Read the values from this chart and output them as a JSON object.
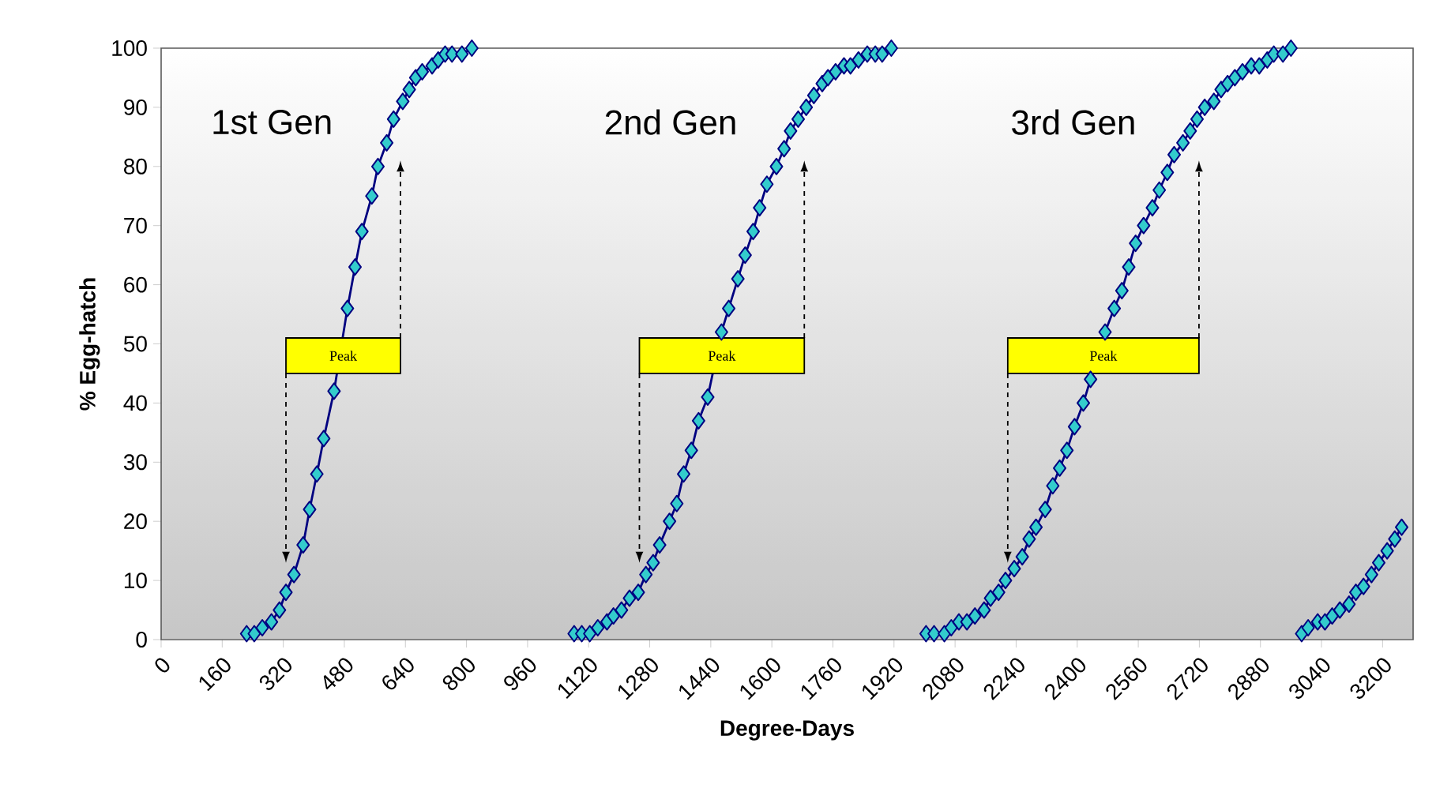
{
  "chart_data": {
    "type": "line",
    "xlabel": "Degree-Days",
    "ylabel": "% Egg-hatch",
    "xlim": [
      0,
      3280
    ],
    "ylim": [
      0,
      100
    ],
    "xticks": [
      0,
      160,
      320,
      480,
      640,
      800,
      960,
      1120,
      1280,
      1440,
      1600,
      1760,
      1920,
      2080,
      2240,
      2400,
      2560,
      2720,
      2880,
      3040,
      3200
    ],
    "yticks": [
      0,
      10,
      20,
      30,
      40,
      50,
      60,
      70,
      80,
      90,
      100
    ],
    "marker": "diamond",
    "line_style": "solid",
    "series": [
      {
        "color": "#33cccc",
        "x": [
          224,
          244,
          265,
          289,
          310,
          327,
          348,
          372,
          389,
          408,
          426,
          453,
          488,
          508,
          526,
          552,
          568,
          591,
          609,
          633,
          650,
          667,
          684,
          710,
          726,
          744,
          762,
          788,
          814
        ],
        "values": [
          1,
          1,
          2,
          3,
          5,
          8,
          11,
          16,
          22,
          28,
          34,
          42,
          56,
          63,
          69,
          75,
          80,
          84,
          88,
          91,
          93,
          95,
          96,
          97,
          98,
          99,
          99,
          99,
          100
        ]
      },
      {
        "color": "#33cccc",
        "x": [
          1082,
          1102,
          1123,
          1144,
          1168,
          1185,
          1206,
          1227,
          1250,
          1270,
          1289,
          1306,
          1332,
          1351,
          1369,
          1389,
          1408,
          1432,
          1468,
          1487,
          1511,
          1530,
          1551,
          1568,
          1587,
          1612,
          1632,
          1649,
          1669,
          1690,
          1710,
          1732,
          1747,
          1767,
          1789,
          1806,
          1827,
          1850,
          1871,
          1889,
          1913
        ],
        "values": [
          1,
          1,
          1,
          2,
          3,
          4,
          5,
          7,
          8,
          11,
          13,
          16,
          20,
          23,
          28,
          32,
          37,
          41,
          52,
          56,
          61,
          65,
          69,
          73,
          77,
          80,
          83,
          86,
          88,
          90,
          92,
          94,
          95,
          96,
          97,
          97,
          98,
          99,
          99,
          99,
          100
        ]
      },
      {
        "color": "#33cccc",
        "x": [
          2004,
          2025,
          2052,
          2070,
          2090,
          2111,
          2132,
          2156,
          2173,
          2194,
          2212,
          2235,
          2256,
          2274,
          2292,
          2316,
          2336,
          2354,
          2373,
          2393,
          2416,
          2435,
          2473,
          2497,
          2517,
          2535,
          2553,
          2574,
          2597,
          2615,
          2636,
          2654,
          2677,
          2696,
          2714,
          2734,
          2758,
          2777,
          2794,
          2813,
          2833,
          2856,
          2877,
          2898,
          2915,
          2939,
          2960
        ],
        "values": [
          1,
          1,
          1,
          2,
          3,
          3,
          4,
          5,
          7,
          8,
          10,
          12,
          14,
          17,
          19,
          22,
          26,
          29,
          32,
          36,
          40,
          44,
          52,
          56,
          59,
          63,
          67,
          70,
          73,
          76,
          79,
          82,
          84,
          86,
          88,
          90,
          91,
          93,
          94,
          95,
          96,
          97,
          97,
          98,
          99,
          99,
          100
        ]
      },
      {
        "color": "#33cccc",
        "x": [
          2988,
          3005,
          3030,
          3049,
          3068,
          3088,
          3112,
          3130,
          3150,
          3171,
          3190,
          3212,
          3232,
          3250
        ],
        "values": [
          1,
          2,
          3,
          3,
          4,
          5,
          6,
          8,
          9,
          11,
          13,
          15,
          17,
          19
        ]
      }
    ],
    "bands": [
      {
        "axis": "x",
        "from": 327,
        "to": 627,
        "label": "Peak",
        "color": "#ffff00"
      },
      {
        "axis": "x",
        "from": 1253,
        "to": 1685,
        "label": "Peak",
        "color": "#ffff00"
      },
      {
        "axis": "x",
        "from": 2218,
        "to": 2719,
        "label": "Peak",
        "color": "#ffff00"
      }
    ],
    "annotations": [
      "1st Gen",
      "2nd Gen",
      "3rd Gen"
    ]
  }
}
